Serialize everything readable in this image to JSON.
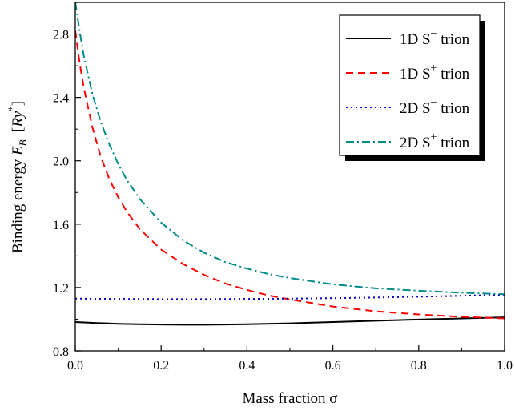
{
  "chart_data": {
    "type": "line",
    "xlabel": "Mass fraction σ",
    "ylabel": {
      "prefix": "Binding energy ",
      "symbol": "E",
      "subscript": "B",
      "unit_open": "  [",
      "unit": "Ry",
      "unit_sup": "*",
      "unit_close": "]"
    },
    "xlim": [
      0.0,
      1.0
    ],
    "ylim": [
      0.8,
      3.0
    ],
    "xticks": [
      "0.0",
      "0.2",
      "0.4",
      "0.6",
      "0.8",
      "1.0"
    ],
    "yticks": [
      "0.8",
      "1.2",
      "1.6",
      "2.0",
      "2.4",
      "2.8"
    ],
    "legend_position": "top-right",
    "series": [
      {
        "name": "1D S⁻ trion",
        "legend": {
          "pre": "1D S",
          "sup": "−",
          "post": " trion"
        },
        "color": "#000000",
        "dash": "solid",
        "x": [
          0.0,
          0.05,
          0.1,
          0.15,
          0.2,
          0.25,
          0.3,
          0.35,
          0.4,
          0.5,
          0.6,
          0.7,
          0.8,
          0.9,
          1.0
        ],
        "y": [
          0.982,
          0.976,
          0.971,
          0.968,
          0.966,
          0.965,
          0.965,
          0.966,
          0.968,
          0.974,
          0.982,
          0.99,
          0.998,
          1.005,
          1.012
        ]
      },
      {
        "name": "1D S⁺ trion",
        "legend": {
          "pre": "1D S",
          "sup": "+",
          "post": " trion"
        },
        "color": "#ff0000",
        "dash": "dashed",
        "x": [
          0.0,
          0.01,
          0.02,
          0.04,
          0.06,
          0.08,
          0.1,
          0.12,
          0.15,
          0.2,
          0.25,
          0.3,
          0.35,
          0.4,
          0.45,
          0.5,
          0.6,
          0.7,
          0.8,
          0.9,
          1.0
        ],
        "y": [
          2.82,
          2.62,
          2.46,
          2.21,
          2.02,
          1.88,
          1.77,
          1.68,
          1.57,
          1.44,
          1.35,
          1.28,
          1.225,
          1.185,
          1.15,
          1.125,
          1.08,
          1.05,
          1.03,
          1.015,
          1.005
        ]
      },
      {
        "name": "2D S⁻ trion",
        "legend": {
          "pre": "2D S",
          "sup": "−",
          "post": " trion"
        },
        "color": "#0000cc",
        "dash": "dotted",
        "x": [
          0.0,
          0.1,
          0.2,
          0.3,
          0.4,
          0.5,
          0.6,
          0.7,
          0.8,
          0.9,
          1.0
        ],
        "y": [
          1.13,
          1.128,
          1.127,
          1.127,
          1.128,
          1.13,
          1.133,
          1.137,
          1.142,
          1.148,
          1.155
        ]
      },
      {
        "name": "2D S⁺ trion",
        "legend": {
          "pre": "2D S",
          "sup": "+",
          "post": " trion"
        },
        "color": "#008b8b",
        "dash": "dashdot",
        "x": [
          0.0,
          0.01,
          0.02,
          0.04,
          0.06,
          0.08,
          0.1,
          0.12,
          0.15,
          0.2,
          0.25,
          0.3,
          0.35,
          0.4,
          0.45,
          0.5,
          0.6,
          0.7,
          0.8,
          0.9,
          1.0
        ],
        "y": [
          3.0,
          2.82,
          2.66,
          2.42,
          2.24,
          2.1,
          1.98,
          1.88,
          1.76,
          1.61,
          1.5,
          1.42,
          1.36,
          1.32,
          1.285,
          1.26,
          1.22,
          1.195,
          1.18,
          1.167,
          1.158
        ]
      }
    ]
  }
}
